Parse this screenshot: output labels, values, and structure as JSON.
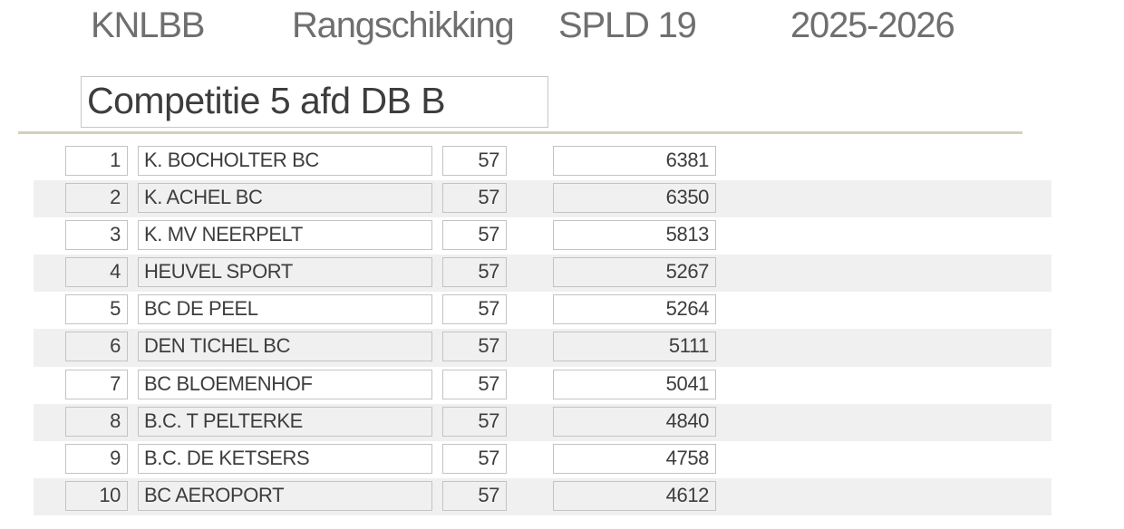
{
  "header": {
    "org": "KNLBB",
    "title": "Rangschikking",
    "matchday": "SPLD 19",
    "season": "2025-2026"
  },
  "competition": {
    "name": "Competitie 5 afd DB B"
  },
  "table": {
    "rows": [
      {
        "rank": "1",
        "team": "K. BOCHOLTER BC",
        "played": "57",
        "points": "6381"
      },
      {
        "rank": "2",
        "team": "K. ACHEL BC",
        "played": "57",
        "points": "6350"
      },
      {
        "rank": "3",
        "team": "K. MV NEERPELT",
        "played": "57",
        "points": "5813"
      },
      {
        "rank": "4",
        "team": "HEUVEL SPORT",
        "played": "57",
        "points": "5267"
      },
      {
        "rank": "5",
        "team": "BC DE PEEL",
        "played": "57",
        "points": "5264"
      },
      {
        "rank": "6",
        "team": "DEN TICHEL BC",
        "played": "57",
        "points": "5111"
      },
      {
        "rank": "7",
        "team": "BC BLOEMENHOF",
        "played": "57",
        "points": "5041"
      },
      {
        "rank": "8",
        "team": "B.C. T PELTERKE",
        "played": "57",
        "points": "4840"
      },
      {
        "rank": "9",
        "team": "B.C. DE KETSERS",
        "played": "57",
        "points": "4758"
      },
      {
        "rank": "10",
        "team": "BC AEROPORT",
        "played": "57",
        "points": "4612"
      }
    ]
  },
  "colors": {
    "header_text": "#6f6f6f",
    "body_text": "#3d3d3d",
    "stripe": "#f0f0f0",
    "cell_border": "#c3c3c3",
    "rule": "#d5cfc0",
    "box_border": "#c6c6c6",
    "page_bg": "#ffffff"
  }
}
